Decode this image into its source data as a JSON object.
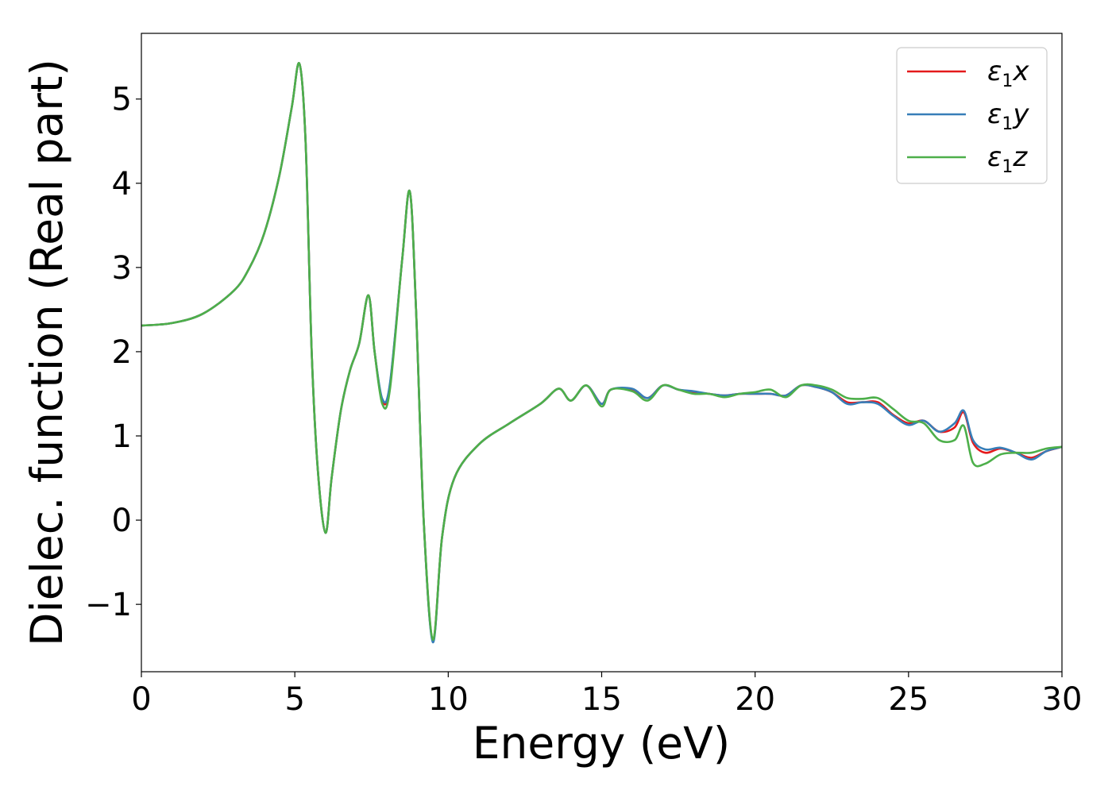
{
  "chart_data": {
    "type": "line",
    "xlabel": "Energy (eV)",
    "ylabel": "Dielec. function (Real part)",
    "xlim": [
      0,
      30
    ],
    "ylim": [
      -1.8,
      5.78
    ],
    "x_ticks": [
      0,
      5,
      10,
      15,
      20,
      25,
      30
    ],
    "x_tick_labels": [
      "0",
      "5",
      "10",
      "15",
      "20",
      "25",
      "30"
    ],
    "y_ticks": [
      -1,
      0,
      1,
      2,
      3,
      4,
      5
    ],
    "y_tick_labels": [
      "−1",
      "0",
      "1",
      "2",
      "3",
      "4",
      "5"
    ],
    "grid": false,
    "legend_position": "upper-right",
    "series": [
      {
        "name": "ε₁x",
        "legend_symbol": "ε",
        "legend_sub": "1",
        "legend_var": "x",
        "color": "#e41a1c",
        "points": [
          [
            0,
            2.31
          ],
          [
            1,
            2.34
          ],
          [
            2,
            2.45
          ],
          [
            3,
            2.72
          ],
          [
            3.5,
            2.98
          ],
          [
            4,
            3.4
          ],
          [
            4.5,
            4.1
          ],
          [
            4.9,
            4.9
          ],
          [
            5.15,
            5.42
          ],
          [
            5.35,
            4.5
          ],
          [
            5.55,
            2.0
          ],
          [
            5.75,
            0.6
          ],
          [
            6.0,
            -0.15
          ],
          [
            6.2,
            0.5
          ],
          [
            6.5,
            1.3
          ],
          [
            6.8,
            1.78
          ],
          [
            7.1,
            2.1
          ],
          [
            7.4,
            2.67
          ],
          [
            7.6,
            2.0
          ],
          [
            7.85,
            1.42
          ],
          [
            8.1,
            1.6
          ],
          [
            8.5,
            3.1
          ],
          [
            8.75,
            3.9
          ],
          [
            8.95,
            2.5
          ],
          [
            9.2,
            0.0
          ],
          [
            9.5,
            -1.43
          ],
          [
            9.8,
            -0.2
          ],
          [
            10.2,
            0.5
          ],
          [
            11,
            0.9
          ],
          [
            12,
            1.15
          ],
          [
            13,
            1.38
          ],
          [
            13.6,
            1.56
          ],
          [
            14.0,
            1.42
          ],
          [
            14.5,
            1.6
          ],
          [
            15.0,
            1.38
          ],
          [
            15.3,
            1.55
          ],
          [
            16,
            1.55
          ],
          [
            16.5,
            1.45
          ],
          [
            17,
            1.6
          ],
          [
            17.5,
            1.55
          ],
          [
            18,
            1.52
          ],
          [
            18.5,
            1.5
          ],
          [
            19,
            1.48
          ],
          [
            19.5,
            1.5
          ],
          [
            20,
            1.5
          ],
          [
            20.5,
            1.5
          ],
          [
            21,
            1.48
          ],
          [
            21.5,
            1.6
          ],
          [
            22,
            1.58
          ],
          [
            22.5,
            1.52
          ],
          [
            23,
            1.4
          ],
          [
            23.5,
            1.4
          ],
          [
            24,
            1.4
          ],
          [
            24.5,
            1.25
          ],
          [
            25,
            1.15
          ],
          [
            25.5,
            1.18
          ],
          [
            26,
            1.05
          ],
          [
            26.5,
            1.1
          ],
          [
            26.8,
            1.28
          ],
          [
            27.1,
            0.92
          ],
          [
            27.5,
            0.8
          ],
          [
            28,
            0.85
          ],
          [
            28.5,
            0.8
          ],
          [
            29,
            0.74
          ],
          [
            29.5,
            0.82
          ],
          [
            30,
            0.87
          ]
        ]
      },
      {
        "name": "ε₁y",
        "legend_symbol": "ε",
        "legend_sub": "1",
        "legend_var": "y",
        "color": "#377eb8",
        "points": [
          [
            0,
            2.31
          ],
          [
            1,
            2.34
          ],
          [
            2,
            2.45
          ],
          [
            3,
            2.72
          ],
          [
            3.5,
            2.98
          ],
          [
            4,
            3.4
          ],
          [
            4.5,
            4.1
          ],
          [
            4.9,
            4.9
          ],
          [
            5.15,
            5.42
          ],
          [
            5.35,
            4.5
          ],
          [
            5.55,
            2.0
          ],
          [
            5.75,
            0.6
          ],
          [
            6.0,
            -0.15
          ],
          [
            6.2,
            0.5
          ],
          [
            6.5,
            1.3
          ],
          [
            6.8,
            1.78
          ],
          [
            7.1,
            2.1
          ],
          [
            7.4,
            2.67
          ],
          [
            7.6,
            2.0
          ],
          [
            7.85,
            1.44
          ],
          [
            8.1,
            1.62
          ],
          [
            8.5,
            3.1
          ],
          [
            8.75,
            3.9
          ],
          [
            8.95,
            2.5
          ],
          [
            9.2,
            0.0
          ],
          [
            9.5,
            -1.45
          ],
          [
            9.8,
            -0.2
          ],
          [
            10.2,
            0.5
          ],
          [
            11,
            0.9
          ],
          [
            12,
            1.15
          ],
          [
            13,
            1.38
          ],
          [
            13.6,
            1.56
          ],
          [
            14.0,
            1.42
          ],
          [
            14.5,
            1.6
          ],
          [
            15.0,
            1.38
          ],
          [
            15.3,
            1.55
          ],
          [
            16,
            1.56
          ],
          [
            16.5,
            1.45
          ],
          [
            17,
            1.6
          ],
          [
            17.5,
            1.55
          ],
          [
            18,
            1.53
          ],
          [
            18.5,
            1.5
          ],
          [
            19,
            1.48
          ],
          [
            19.5,
            1.5
          ],
          [
            20,
            1.5
          ],
          [
            20.5,
            1.5
          ],
          [
            21,
            1.48
          ],
          [
            21.5,
            1.6
          ],
          [
            22,
            1.58
          ],
          [
            22.5,
            1.52
          ],
          [
            23,
            1.38
          ],
          [
            23.5,
            1.4
          ],
          [
            24,
            1.38
          ],
          [
            24.5,
            1.24
          ],
          [
            25,
            1.13
          ],
          [
            25.5,
            1.18
          ],
          [
            26,
            1.05
          ],
          [
            26.5,
            1.15
          ],
          [
            26.8,
            1.3
          ],
          [
            27.1,
            0.95
          ],
          [
            27.5,
            0.84
          ],
          [
            28,
            0.86
          ],
          [
            28.5,
            0.8
          ],
          [
            29,
            0.72
          ],
          [
            29.5,
            0.82
          ],
          [
            30,
            0.87
          ]
        ]
      },
      {
        "name": "ε₁z",
        "legend_symbol": "ε",
        "legend_sub": "1",
        "legend_var": "z",
        "color": "#4daf4a",
        "points": [
          [
            0,
            2.31
          ],
          [
            1,
            2.34
          ],
          [
            2,
            2.45
          ],
          [
            3,
            2.72
          ],
          [
            3.5,
            2.98
          ],
          [
            4,
            3.4
          ],
          [
            4.5,
            4.1
          ],
          [
            4.9,
            4.9
          ],
          [
            5.15,
            5.42
          ],
          [
            5.35,
            4.5
          ],
          [
            5.55,
            2.0
          ],
          [
            5.75,
            0.6
          ],
          [
            6.0,
            -0.15
          ],
          [
            6.2,
            0.5
          ],
          [
            6.5,
            1.3
          ],
          [
            6.8,
            1.78
          ],
          [
            7.1,
            2.1
          ],
          [
            7.4,
            2.67
          ],
          [
            7.6,
            2.0
          ],
          [
            7.85,
            1.38
          ],
          [
            8.1,
            1.55
          ],
          [
            8.5,
            3.1
          ],
          [
            8.75,
            3.9
          ],
          [
            8.95,
            2.5
          ],
          [
            9.2,
            0.0
          ],
          [
            9.5,
            -1.42
          ],
          [
            9.8,
            -0.2
          ],
          [
            10.2,
            0.5
          ],
          [
            11,
            0.9
          ],
          [
            12,
            1.15
          ],
          [
            13,
            1.38
          ],
          [
            13.6,
            1.56
          ],
          [
            14.0,
            1.42
          ],
          [
            14.5,
            1.6
          ],
          [
            15.0,
            1.35
          ],
          [
            15.3,
            1.55
          ],
          [
            16,
            1.53
          ],
          [
            16.5,
            1.42
          ],
          [
            17,
            1.6
          ],
          [
            17.5,
            1.55
          ],
          [
            18,
            1.5
          ],
          [
            18.5,
            1.5
          ],
          [
            19,
            1.46
          ],
          [
            19.5,
            1.5
          ],
          [
            20,
            1.52
          ],
          [
            20.5,
            1.55
          ],
          [
            21,
            1.46
          ],
          [
            21.5,
            1.6
          ],
          [
            22,
            1.6
          ],
          [
            22.5,
            1.55
          ],
          [
            23,
            1.45
          ],
          [
            23.5,
            1.44
          ],
          [
            24,
            1.45
          ],
          [
            24.5,
            1.32
          ],
          [
            25,
            1.18
          ],
          [
            25.5,
            1.15
          ],
          [
            26,
            0.95
          ],
          [
            26.5,
            0.95
          ],
          [
            26.8,
            1.12
          ],
          [
            27.1,
            0.68
          ],
          [
            27.5,
            0.67
          ],
          [
            28,
            0.78
          ],
          [
            28.5,
            0.8
          ],
          [
            29,
            0.8
          ],
          [
            29.5,
            0.85
          ],
          [
            30,
            0.87
          ]
        ]
      }
    ]
  }
}
